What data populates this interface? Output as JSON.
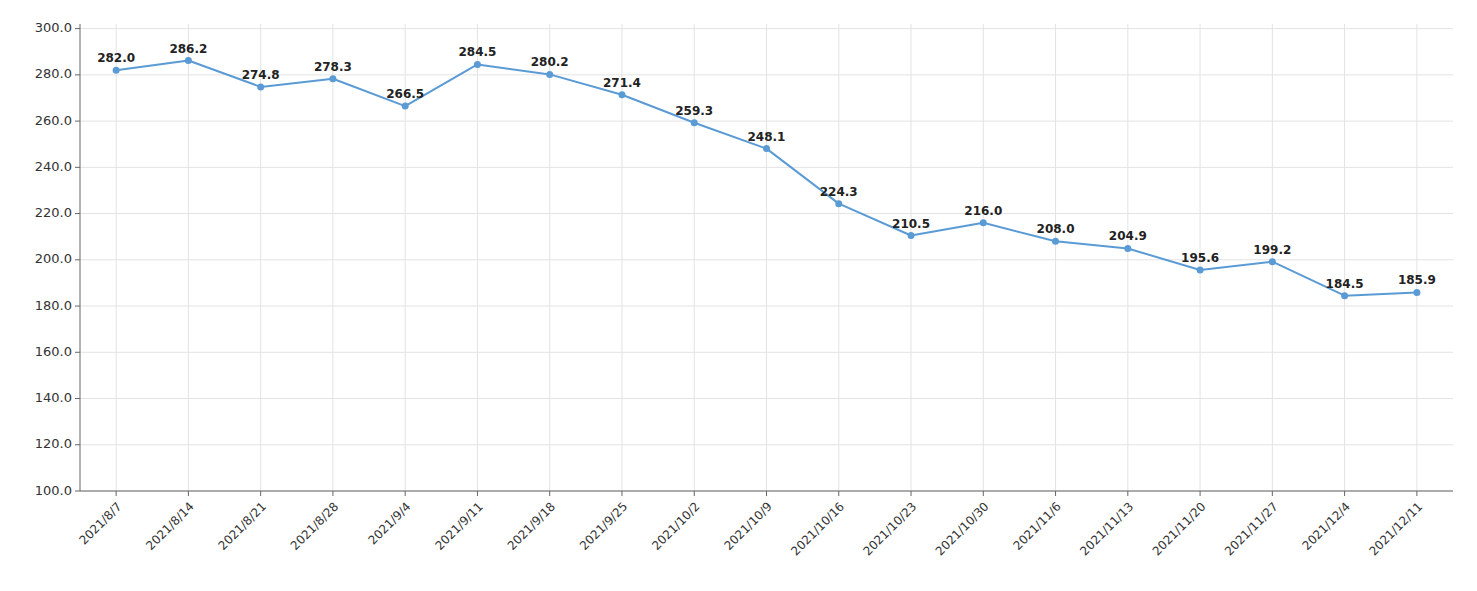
{
  "chart_data": {
    "type": "line",
    "categories": [
      "2021/8/7",
      "2021/8/14",
      "2021/8/21",
      "2021/8/28",
      "2021/9/4",
      "2021/9/11",
      "2021/9/18",
      "2021/9/25",
      "2021/10/2",
      "2021/10/9",
      "2021/10/16",
      "2021/10/23",
      "2021/10/30",
      "2021/11/6",
      "2021/11/13",
      "2021/11/20",
      "2021/11/27",
      "2021/12/4",
      "2021/12/11"
    ],
    "values": [
      282.0,
      286.2,
      274.8,
      278.3,
      266.5,
      284.5,
      280.2,
      271.4,
      259.3,
      248.1,
      224.3,
      210.5,
      216.0,
      208.0,
      204.9,
      195.6,
      199.2,
      184.5,
      185.9
    ],
    "value_labels": [
      "282.0",
      "286.2",
      "274.8",
      "278.3",
      "266.5",
      "284.5",
      "280.2",
      "271.4",
      "259.3",
      "248.1",
      "224.3",
      "210.5",
      "216.0",
      "208.0",
      "204.9",
      "195.6",
      "199.2",
      "184.5",
      "185.9"
    ],
    "color": "#5b9bd5",
    "marker": "circle",
    "line_style": "solid",
    "data_labels": true,
    "grid": true,
    "ylim": [
      100.0,
      302.0
    ],
    "yticks": [
      {
        "value": 100.0,
        "label": "100.0"
      },
      {
        "value": 120.0,
        "label": "120.0"
      },
      {
        "value": 140.0,
        "label": "140.0"
      },
      {
        "value": 160.0,
        "label": "160.0"
      },
      {
        "value": 180.0,
        "label": "180.0"
      },
      {
        "value": 200.0,
        "label": "200.0"
      },
      {
        "value": 220.0,
        "label": "220.0"
      },
      {
        "value": 240.0,
        "label": "240.0"
      },
      {
        "value": 260.0,
        "label": "260.0"
      },
      {
        "value": 280.0,
        "label": "280.0"
      },
      {
        "value": 300.0,
        "label": "300.0"
      }
    ]
  }
}
